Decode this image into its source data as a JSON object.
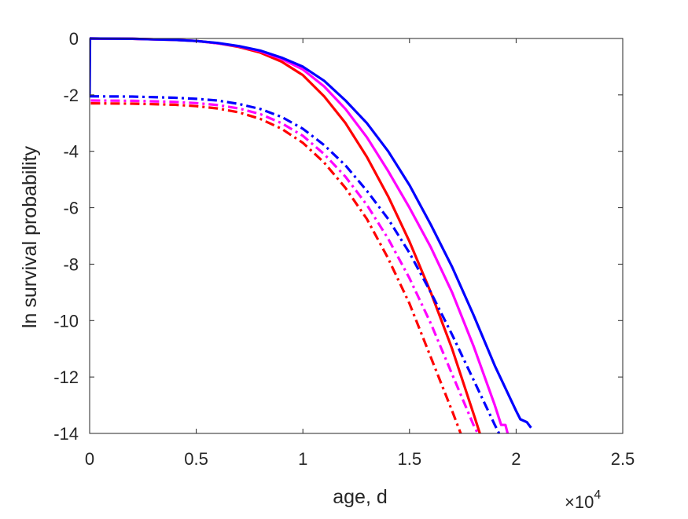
{
  "chart_data": {
    "type": "line",
    "title": "",
    "xlabel": "age, d",
    "ylabel": "ln survival probability",
    "x_exponent_label": "×10",
    "x_exponent_power": "4",
    "xlim": [
      0,
      2.5
    ],
    "ylim": [
      -14,
      0
    ],
    "x_ticks": [
      0,
      0.5,
      1,
      1.5,
      2,
      2.5
    ],
    "x_tick_labels": [
      "0",
      "0.5",
      "1",
      "1.5",
      "2",
      "2.5"
    ],
    "y_ticks": [
      0,
      -2,
      -4,
      -6,
      -8,
      -10,
      -12,
      -14
    ],
    "y_tick_labels": [
      "0",
      "-2",
      "-4",
      "-6",
      "-8",
      "-10",
      "-12",
      "-14"
    ],
    "grid": false,
    "legend": "none",
    "series": [
      {
        "color": "#ff0000",
        "style": "solid",
        "points": [
          [
            0,
            0
          ],
          [
            0.2,
            -0.01
          ],
          [
            0.4,
            -0.05
          ],
          [
            0.5,
            -0.09
          ],
          [
            0.6,
            -0.17
          ],
          [
            0.7,
            -0.3
          ],
          [
            0.8,
            -0.5
          ],
          [
            0.9,
            -0.82
          ],
          [
            1.0,
            -1.3
          ],
          [
            1.1,
            -2.05
          ],
          [
            1.2,
            -3.0
          ],
          [
            1.3,
            -4.2
          ],
          [
            1.4,
            -5.6
          ],
          [
            1.5,
            -7.2
          ],
          [
            1.6,
            -9.0
          ],
          [
            1.7,
            -11.0
          ],
          [
            1.8,
            -13.3
          ],
          [
            1.83,
            -14.0
          ]
        ]
      },
      {
        "color": "#ff00ff",
        "style": "solid",
        "points": [
          [
            0,
            0
          ],
          [
            0.2,
            -0.01
          ],
          [
            0.4,
            -0.05
          ],
          [
            0.5,
            -0.09
          ],
          [
            0.6,
            -0.17
          ],
          [
            0.7,
            -0.28
          ],
          [
            0.8,
            -0.45
          ],
          [
            0.9,
            -0.72
          ],
          [
            1.0,
            -1.1
          ],
          [
            1.1,
            -1.7
          ],
          [
            1.2,
            -2.5
          ],
          [
            1.3,
            -3.5
          ],
          [
            1.4,
            -4.7
          ],
          [
            1.5,
            -6.0
          ],
          [
            1.6,
            -7.4
          ],
          [
            1.7,
            -9.0
          ],
          [
            1.8,
            -10.9
          ],
          [
            1.9,
            -13.0
          ],
          [
            1.93,
            -13.7
          ],
          [
            1.95,
            -13.7
          ],
          [
            1.96,
            -14.0
          ]
        ]
      },
      {
        "color": "#0000ff",
        "style": "solid",
        "points": [
          [
            0,
            -0.3
          ],
          [
            0,
            -1.95
          ],
          [
            0.002,
            0
          ],
          [
            0.2,
            -0.01
          ],
          [
            0.4,
            -0.05
          ],
          [
            0.5,
            -0.09
          ],
          [
            0.6,
            -0.16
          ],
          [
            0.7,
            -0.27
          ],
          [
            0.8,
            -0.43
          ],
          [
            0.9,
            -0.68
          ],
          [
            1.0,
            -1.0
          ],
          [
            1.1,
            -1.5
          ],
          [
            1.2,
            -2.2
          ],
          [
            1.3,
            -3.0
          ],
          [
            1.4,
            -4.0
          ],
          [
            1.5,
            -5.2
          ],
          [
            1.6,
            -6.6
          ],
          [
            1.7,
            -8.1
          ],
          [
            1.8,
            -9.8
          ],
          [
            1.9,
            -11.6
          ],
          [
            2.0,
            -13.2
          ],
          [
            2.02,
            -13.5
          ],
          [
            2.05,
            -13.6
          ],
          [
            2.07,
            -13.8
          ]
        ]
      },
      {
        "color": "#ff0000",
        "style": "dashdot",
        "points": [
          [
            0.005,
            -2.3
          ],
          [
            0.2,
            -2.31
          ],
          [
            0.4,
            -2.35
          ],
          [
            0.5,
            -2.4
          ],
          [
            0.6,
            -2.48
          ],
          [
            0.7,
            -2.62
          ],
          [
            0.8,
            -2.85
          ],
          [
            0.9,
            -3.2
          ],
          [
            1.0,
            -3.7
          ],
          [
            1.1,
            -4.4
          ],
          [
            1.2,
            -5.3
          ],
          [
            1.3,
            -6.4
          ],
          [
            1.4,
            -7.8
          ],
          [
            1.5,
            -9.4
          ],
          [
            1.6,
            -11.3
          ],
          [
            1.7,
            -13.2
          ],
          [
            1.74,
            -14.0
          ]
        ]
      },
      {
        "color": "#ff00ff",
        "style": "dashdot",
        "points": [
          [
            0.005,
            -2.2
          ],
          [
            0.2,
            -2.21
          ],
          [
            0.4,
            -2.25
          ],
          [
            0.5,
            -2.29
          ],
          [
            0.6,
            -2.36
          ],
          [
            0.7,
            -2.48
          ],
          [
            0.8,
            -2.68
          ],
          [
            0.9,
            -3.0
          ],
          [
            1.0,
            -3.45
          ],
          [
            1.1,
            -4.1
          ],
          [
            1.2,
            -4.9
          ],
          [
            1.3,
            -5.9
          ],
          [
            1.4,
            -7.1
          ],
          [
            1.5,
            -8.5
          ],
          [
            1.6,
            -10.1
          ],
          [
            1.7,
            -11.9
          ],
          [
            1.8,
            -13.7
          ],
          [
            1.82,
            -14.0
          ]
        ]
      },
      {
        "color": "#0000ff",
        "style": "dashdot",
        "points": [
          [
            0,
            -2.05
          ],
          [
            0.2,
            -2.06
          ],
          [
            0.4,
            -2.1
          ],
          [
            0.5,
            -2.14
          ],
          [
            0.6,
            -2.2
          ],
          [
            0.7,
            -2.32
          ],
          [
            0.8,
            -2.5
          ],
          [
            0.9,
            -2.78
          ],
          [
            1.0,
            -3.2
          ],
          [
            1.1,
            -3.78
          ],
          [
            1.2,
            -4.5
          ],
          [
            1.3,
            -5.4
          ],
          [
            1.4,
            -6.4
          ],
          [
            1.5,
            -7.6
          ],
          [
            1.6,
            -9.0
          ],
          [
            1.7,
            -10.5
          ],
          [
            1.8,
            -12.1
          ],
          [
            1.9,
            -13.7
          ],
          [
            1.92,
            -14.0
          ]
        ]
      }
    ]
  }
}
